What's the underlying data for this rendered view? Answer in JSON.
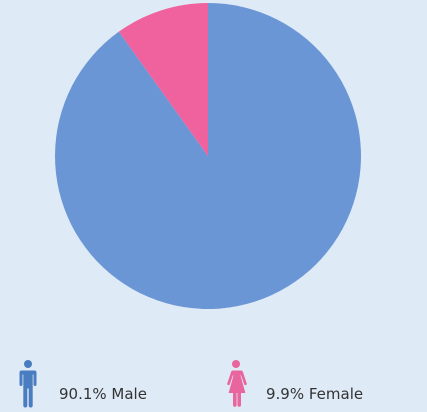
{
  "chart_data": {
    "type": "pie",
    "slices": [
      {
        "label": "Male",
        "value": 90.1,
        "color": "#6b96d6"
      },
      {
        "label": "Female",
        "value": 9.9,
        "color": "#f0629e"
      }
    ],
    "start": "12 o'clock",
    "direction": "clockwise",
    "legend_position": "bottom"
  },
  "legend": {
    "male": {
      "text": "90.1% Male",
      "icon": "male-person-icon",
      "color": "#4a7cc0"
    },
    "female": {
      "text": "9.9% Female",
      "icon": "female-person-icon",
      "color": "#e8659e"
    }
  }
}
